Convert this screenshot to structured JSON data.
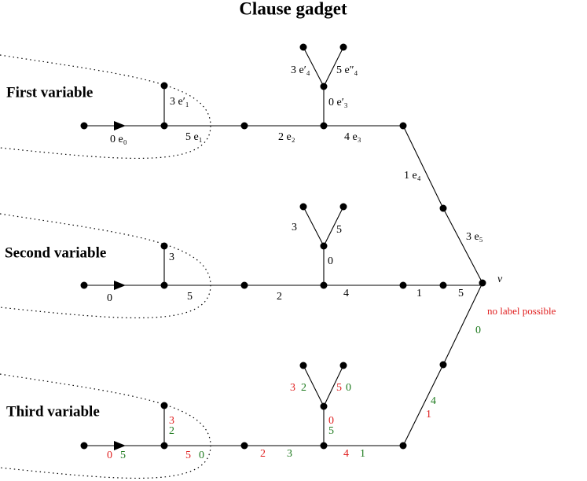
{
  "title": "Clause gadget",
  "variables": [
    "First variable",
    "Second variable",
    "Third variable"
  ],
  "first_labels": [
    "0 e₀",
    "3 e′₁",
    "5 e₁",
    "2 e₂",
    "4 e₃",
    "0 e′₃",
    "3 e′₄",
    "5 e″₄",
    "1 e₄",
    "3 e₅"
  ],
  "second_labels": [
    "0",
    "3",
    "5",
    "2",
    "4",
    "0",
    "3",
    "5",
    "1",
    "5"
  ],
  "vertex": "v",
  "note": "no label possible",
  "third_labels": {
    "red": [
      "3",
      "0",
      "5",
      "2",
      "4",
      "0",
      "3",
      "5",
      "1"
    ],
    "green": [
      "2",
      "5",
      "0",
      "3",
      "1",
      "5",
      "2",
      "0",
      "4",
      "0"
    ]
  }
}
